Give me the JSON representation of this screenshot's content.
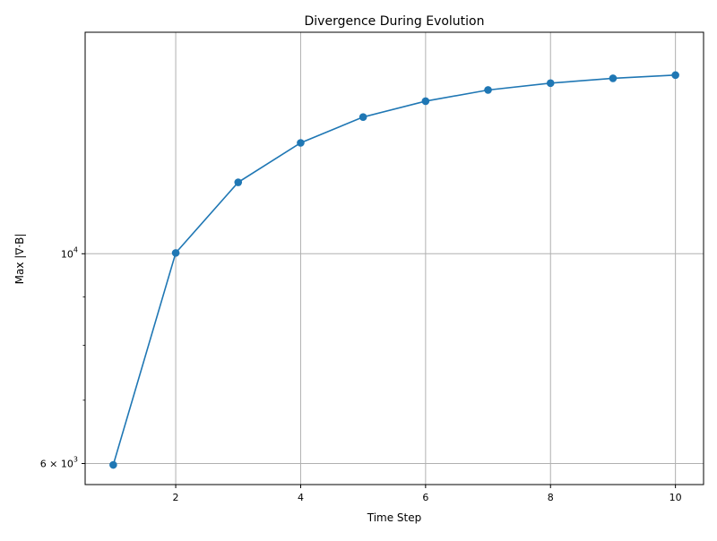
{
  "chart_data": {
    "type": "line",
    "title": "Divergence During Evolution",
    "xlabel": "Time Step",
    "ylabel": "Max |∇·B|",
    "xlim": [
      0.55,
      10.45
    ],
    "ylim": [
      5700,
      17150
    ],
    "yscale": "log",
    "grid": true,
    "x_ticks": [
      2,
      4,
      6,
      8,
      10
    ],
    "y_major_ticks": [
      {
        "value": 10000,
        "base": "10",
        "exp": "4"
      },
      {
        "value": 6000,
        "base": "6 × 10",
        "exp": "3"
      }
    ],
    "y_minor_ticks": [
      7000,
      8000,
      9000
    ],
    "colors": {
      "series": "#1f77b4",
      "grid": "#b0b0b0",
      "axis": "#000000"
    },
    "series": [
      {
        "marker": "circle",
        "x": [
          1,
          2,
          3,
          4,
          5,
          6,
          7,
          8,
          9,
          10
        ],
        "y": [
          5980,
          10020,
          11900,
          13100,
          13950,
          14500,
          14900,
          15150,
          15330,
          15450
        ]
      }
    ]
  }
}
